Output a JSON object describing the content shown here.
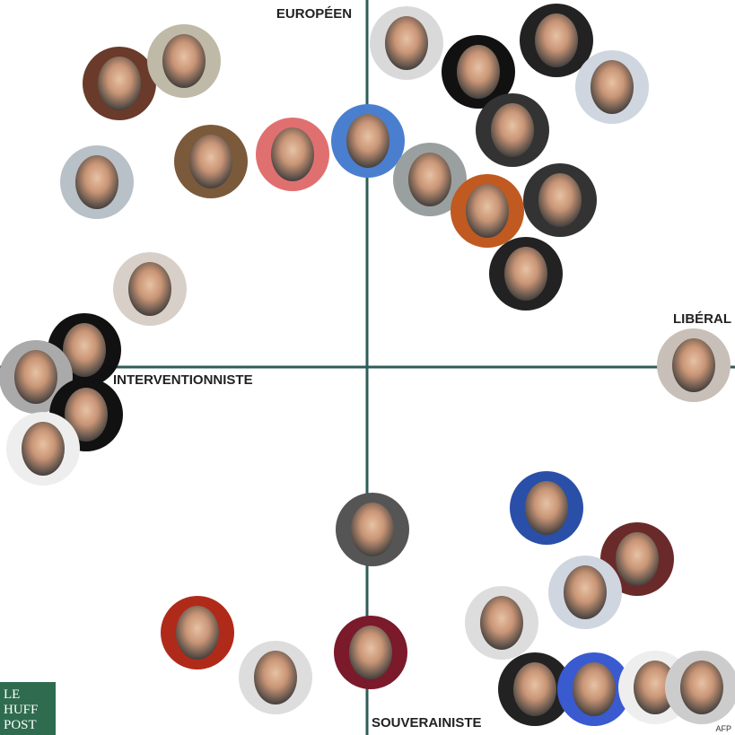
{
  "axes": {
    "top": "EUROPÉEN",
    "right": "LIBÉRAL",
    "left": "INTERVENTIONNISTE",
    "bottom": "SOUVERAINISTE"
  },
  "logo": {
    "lines": [
      "LE",
      "HUFF",
      "POST"
    ]
  },
  "credit": "AFP"
}
